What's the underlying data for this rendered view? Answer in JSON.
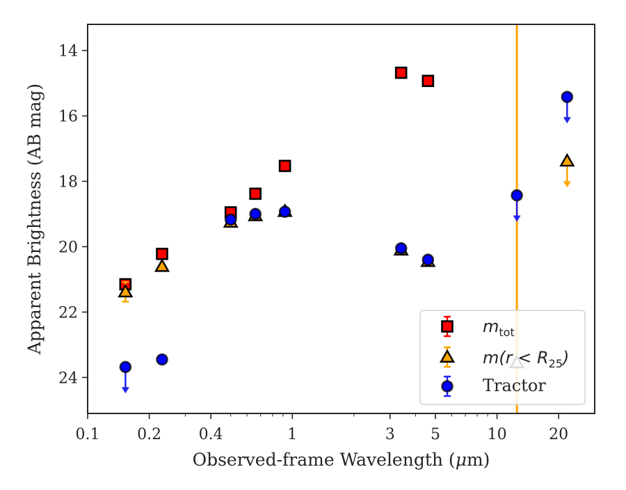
{
  "chart_data": {
    "type": "scatter",
    "title": "",
    "xlabel_parts": [
      "Observed-frame Wavelength (",
      "μ",
      "m)"
    ],
    "ylabel": "Apparent Brightness (AB mag)",
    "x_scale": "log",
    "y_inverted": true,
    "xlim": [
      0.1,
      30
    ],
    "ylim": [
      25.1,
      13.2
    ],
    "x_ticks": [
      {
        "value": 0.1,
        "label": "0.1"
      },
      {
        "value": 0.2,
        "label": "0.2"
      },
      {
        "value": 0.4,
        "label": "0.4"
      },
      {
        "value": 1,
        "label": "1"
      },
      {
        "value": 3,
        "label": "3"
      },
      {
        "value": 5,
        "label": "5"
      },
      {
        "value": 10,
        "label": "10"
      },
      {
        "value": 20,
        "label": "20"
      }
    ],
    "y_ticks": [
      {
        "value": 14,
        "label": "14"
      },
      {
        "value": 16,
        "label": "16"
      },
      {
        "value": 18,
        "label": "18"
      },
      {
        "value": 20,
        "label": "20"
      },
      {
        "value": 22,
        "label": "22"
      },
      {
        "value": 24,
        "label": "24"
      }
    ],
    "vertical_line": {
      "x": 12.5,
      "color": "#FFA500"
    },
    "legend_placement": "lower-right",
    "legend_labels": {
      "m_tot": {
        "main": "m",
        "sub": "tot"
      },
      "m_r25": {
        "pre": "m(r < R",
        "sub": "25",
        "post": ")"
      },
      "tractor": "Tractor"
    },
    "series": [
      {
        "key": "m_tot",
        "marker": "square",
        "color": "#FF0000",
        "points": [
          {
            "x": 0.153,
            "y": 21.15
          },
          {
            "x": 0.231,
            "y": 20.22
          },
          {
            "x": 0.5,
            "y": 18.95
          },
          {
            "x": 0.66,
            "y": 18.38
          },
          {
            "x": 0.92,
            "y": 17.53
          },
          {
            "x": 3.4,
            "y": 14.68
          },
          {
            "x": 4.6,
            "y": 14.93
          }
        ]
      },
      {
        "key": "m_r25",
        "marker": "triangle",
        "color": "#FFA500",
        "points": [
          {
            "x": 0.153,
            "y": 21.38,
            "err": 0.3
          },
          {
            "x": 0.231,
            "y": 20.6
          },
          {
            "x": 0.5,
            "y": 19.25
          },
          {
            "x": 0.66,
            "y": 19.05
          },
          {
            "x": 0.92,
            "y": 18.92
          },
          {
            "x": 3.4,
            "y": 20.1
          },
          {
            "x": 4.6,
            "y": 20.45
          },
          {
            "x": 12.5,
            "y": 23.55
          },
          {
            "x": 22,
            "y": 17.38,
            "upper_limit": true
          }
        ]
      },
      {
        "key": "tractor",
        "marker": "circle",
        "color": "#0000FF",
        "points": [
          {
            "x": 0.153,
            "y": 23.68,
            "upper_limit": true
          },
          {
            "x": 0.231,
            "y": 23.45
          },
          {
            "x": 0.5,
            "y": 19.17
          },
          {
            "x": 0.66,
            "y": 19.0
          },
          {
            "x": 0.92,
            "y": 18.93
          },
          {
            "x": 3.4,
            "y": 20.05
          },
          {
            "x": 4.6,
            "y": 20.4
          },
          {
            "x": 12.5,
            "y": 18.43,
            "upper_limit": true
          },
          {
            "x": 22,
            "y": 15.42,
            "upper_limit": true
          }
        ]
      }
    ]
  }
}
